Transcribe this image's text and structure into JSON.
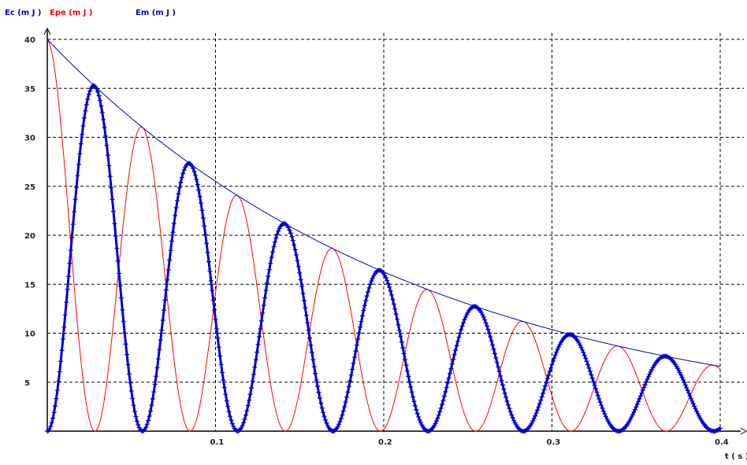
{
  "chart_data": {
    "type": "line",
    "legend": [
      {
        "label": "Ec (m J )",
        "color": "#0000cc"
      },
      {
        "label": "Epe (m J )",
        "color": "#ff0000"
      },
      {
        "label": "Em (m J )",
        "color": "#0000cc"
      }
    ],
    "xlabel": "t ( s )",
    "ylabel": "",
    "xlim": [
      0,
      0.4
    ],
    "ylim": [
      0,
      40
    ],
    "x_ticks": [
      "0.1",
      "0.2",
      "0.3",
      "0.4"
    ],
    "y_ticks": [
      "5",
      "10",
      "15",
      "20",
      "25",
      "30",
      "35",
      "40"
    ],
    "grid": true,
    "series": [
      {
        "name": "Ec (m J )",
        "color": "#0000cc",
        "style": "markers-plus",
        "model": "kinetic"
      },
      {
        "name": "Epe (m J )",
        "color": "#ff0000",
        "style": "line",
        "model": "potential"
      },
      {
        "name": "Em (m J )",
        "color": "#0000cc",
        "style": "line",
        "model": "total"
      }
    ],
    "model": {
      "E0_mJ": 40,
      "decay_per_s": 4.5,
      "oscillation_period_s": 0.1132
    }
  }
}
